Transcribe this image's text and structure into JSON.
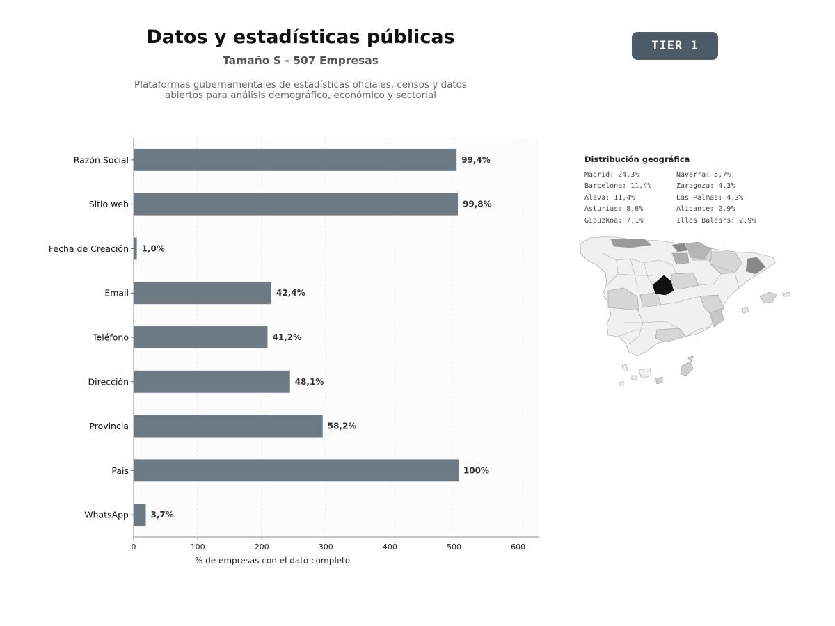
{
  "header": {
    "title": "Datos y estadísticas públicas",
    "subtitle": "Tamaño S - 507 Empresas",
    "description_line1": "Plataformas gubernamentales de estadísticas oficiales, censos y datos",
    "description_line2": "abiertos para análisis demográfico, económico y sectorial",
    "badge": "TIER 1"
  },
  "colors": {
    "bar": "#6d7983",
    "badge": "#4d5a67",
    "map_highlight": "#111111"
  },
  "chart_data": {
    "type": "bar",
    "orientation": "horizontal",
    "categories": [
      "Razón Social",
      "Sitio web",
      "Fecha de Creación",
      "Email",
      "Teléfono",
      "Dirección",
      "Provincia",
      "País",
      "WhatsApp"
    ],
    "values": [
      504,
      506,
      5,
      215,
      209,
      244,
      295,
      507,
      19
    ],
    "data_labels": [
      "99,4%",
      "99,8%",
      "1,0%",
      "42,4%",
      "41,2%",
      "48,1%",
      "58,2%",
      "100%",
      "3,7%"
    ],
    "xlabel": "% de empresas con el dato completo",
    "xticks": [
      "0",
      "100",
      "200",
      "300",
      "400",
      "500",
      "600"
    ],
    "xlim": [
      0,
      633
    ],
    "grid": "vertical dashed"
  },
  "geo": {
    "title": "Distribución geográfica",
    "col1": [
      "Madrid: 24,3%",
      "Barcelona: 11,4%",
      "Álava: 11,4%",
      "Asturias: 8,6%",
      "Gipuzkoa: 7,1%"
    ],
    "col2": [
      "Navarra: 5,7%",
      "Zaragoza: 4,3%",
      "Las Palmas: 4,3%",
      "Alicante: 2,9%",
      "Illes Balears: 2,9%"
    ]
  }
}
